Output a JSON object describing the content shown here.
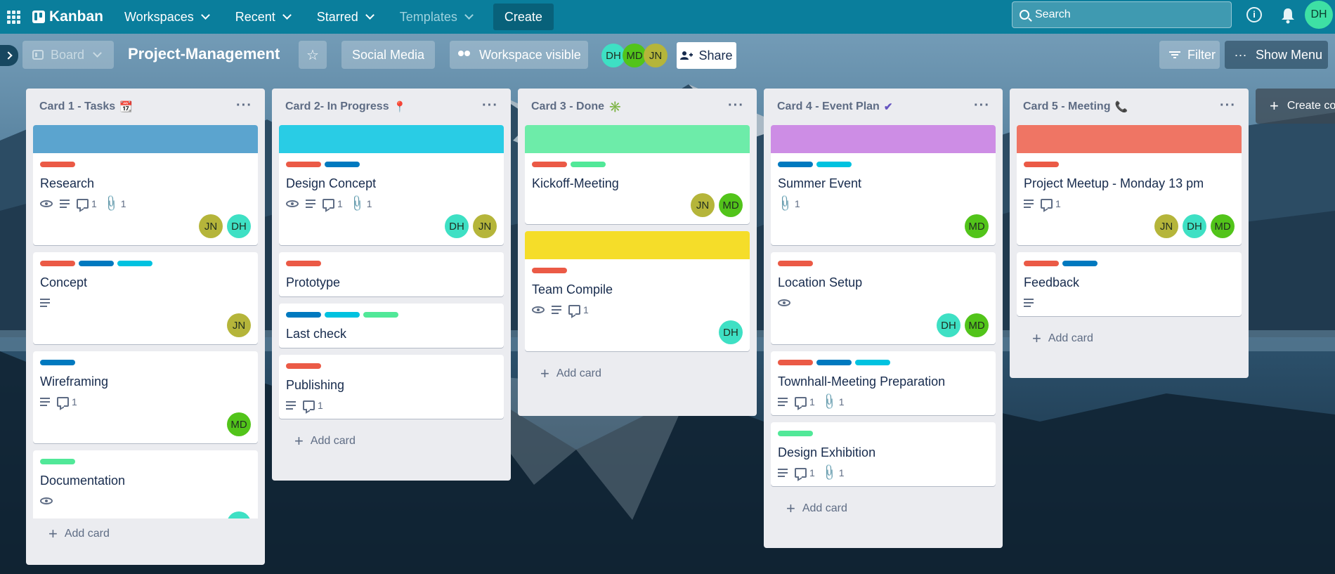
{
  "nav": {
    "logo": "Kanban",
    "workspaces": "Workspaces",
    "recent": "Recent",
    "starred": "Starred",
    "templates": "Templates",
    "create": "Create",
    "search_placeholder": "Search",
    "me": "DH"
  },
  "board": {
    "view": "Board",
    "title": "Project-Management",
    "workspace_name": "Social Media",
    "visibility": "Workspace visible",
    "members": [
      "DH",
      "MD",
      "JN"
    ],
    "share": "Share",
    "filter": "Filter",
    "show_menu": "Show Menu",
    "create_list": "Create co"
  },
  "colors": {
    "DH": "#3ee0c4",
    "MD": "#52c41a",
    "JN": "#b5b53a",
    "label_red": "#eb5a46",
    "label_blue": "#0079bf",
    "label_cyan": "#00c2e0",
    "label_green": "#51e898"
  },
  "lists": [
    {
      "title": "Card 1 - Tasks",
      "emoji": "📆",
      "add": "Add card",
      "cards": [
        {
          "title": "Research",
          "cover": "#5ba4cf",
          "labels": [
            "red"
          ],
          "watch": true,
          "desc": true,
          "comments": "1",
          "attachments": "1",
          "members": [
            "JN",
            "DH"
          ]
        },
        {
          "title": "Concept",
          "labels": [
            "red",
            "blue",
            "cyan"
          ],
          "desc": true,
          "members": [
            "JN"
          ]
        },
        {
          "title": "Wireframing",
          "labels": [
            "blue"
          ],
          "desc": true,
          "comments": "1",
          "members": [
            "MD"
          ]
        },
        {
          "title": "Documentation",
          "labels": [
            "green"
          ],
          "watch": true,
          "members": [
            "DH"
          ]
        }
      ]
    },
    {
      "title": "Card 2- In Progress",
      "emoji": "📍",
      "add": "Add card",
      "cards": [
        {
          "title": "Design Concept",
          "cover": "#29cce5",
          "labels": [
            "red",
            "blue"
          ],
          "watch": true,
          "desc": true,
          "comments": "1",
          "attachments": "1",
          "members": [
            "DH",
            "JN"
          ]
        },
        {
          "title": "Prototype",
          "labels": [
            "red"
          ]
        },
        {
          "title": "Last check",
          "labels": [
            "blue",
            "cyan",
            "green"
          ]
        },
        {
          "title": "Publishing",
          "labels": [
            "red"
          ],
          "desc": true,
          "comments": "1"
        }
      ]
    },
    {
      "title": "Card 3 - Done",
      "emoji": "✳️",
      "add": "Add card",
      "cards": [
        {
          "title": "Kickoff-Meeting",
          "cover": "#6deca9",
          "labels": [
            "red",
            "green"
          ],
          "members": [
            "JN",
            "MD"
          ]
        },
        {
          "title": "Team Compile",
          "cover": "#f5dd29",
          "labels": [
            "red"
          ],
          "watch": true,
          "desc": true,
          "comments": "1",
          "members": [
            "DH"
          ]
        }
      ]
    },
    {
      "title": "Card 4 - Event Plan",
      "emoji": "✔",
      "add": "Add card",
      "cards": [
        {
          "title": "Summer Event",
          "cover": "#cd8de5",
          "labels": [
            "blue",
            "cyan"
          ],
          "attachments": "1",
          "members": [
            "MD"
          ]
        },
        {
          "title": "Location Setup",
          "labels": [
            "red"
          ],
          "watch": true,
          "members": [
            "DH",
            "MD"
          ]
        },
        {
          "title": "Townhall-Meeting Preparation",
          "labels": [
            "red",
            "blue",
            "cyan"
          ],
          "desc": true,
          "comments": "1",
          "attachments": "1"
        },
        {
          "title": "Design Exhibition",
          "labels": [
            "green"
          ],
          "desc": true,
          "comments": "1",
          "attachments": "1"
        }
      ]
    },
    {
      "title": "Card 5 - Meeting",
      "emoji": "📞",
      "add": "Add card",
      "cards": [
        {
          "title": "Project Meetup - Monday 13 pm",
          "cover": "#ef7564",
          "labels": [
            "red"
          ],
          "desc": true,
          "comments": "1",
          "members": [
            "JN",
            "DH",
            "MD"
          ]
        },
        {
          "title": "Feedback",
          "labels": [
            "red",
            "blue"
          ],
          "desc": true
        }
      ]
    }
  ]
}
